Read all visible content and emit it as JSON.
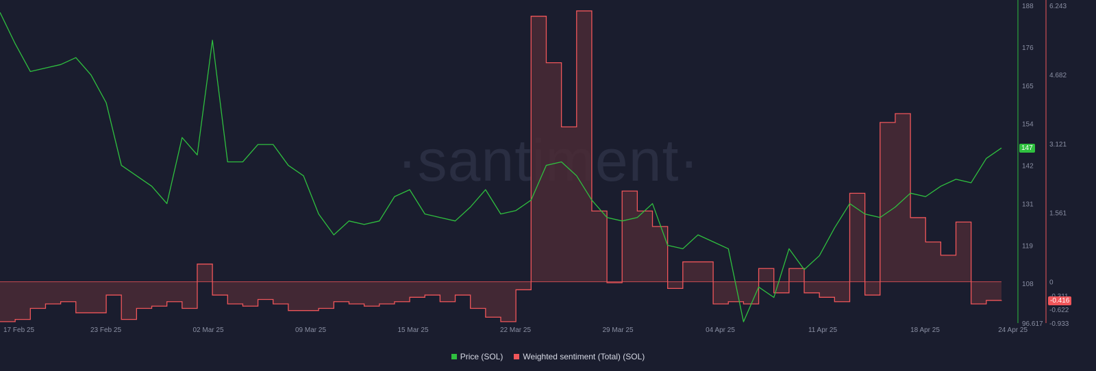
{
  "watermark": "·santiment·",
  "legend": {
    "price": "Price (SOL)",
    "sentiment": "Weighted sentiment (Total) (SOL)"
  },
  "colors": {
    "background": "#1a1d2e",
    "price": "#2fc03f",
    "sentiment": "#f0565a",
    "sentiment_fill": "#4a2a35",
    "axis_text": "#8a8fa3"
  },
  "badges": {
    "price_current": "147",
    "sentiment_current": "-0.416"
  },
  "chart_data": {
    "type": "line",
    "x_ticks": [
      "17 Feb 25",
      "23 Feb 25",
      "02 Mar 25",
      "09 Mar 25",
      "15 Mar 25",
      "22 Mar 25",
      "29 Mar 25",
      "04 Apr 25",
      "11 Apr 25",
      "18 Apr 25",
      "24 Apr 25"
    ],
    "x_range": [
      "2025-02-17",
      "2025-04-24"
    ],
    "grid": false,
    "legend_position": "bottom-center",
    "price_axis": {
      "side": "right",
      "ticks": [
        "188",
        "176",
        "165",
        "154",
        "142",
        "131",
        "119",
        "108",
        "96.617"
      ],
      "ylim": [
        96.617,
        188
      ]
    },
    "sentiment_axis": {
      "side": "right",
      "ticks": [
        "6.243",
        "4.682",
        "3.121",
        "1.561",
        "0",
        "-0.311",
        "-0.622",
        "-0.933"
      ],
      "ylim": [
        -0.933,
        6.243
      ]
    },
    "series": [
      {
        "name": "Price (SOL)",
        "axis": "price",
        "points": [
          [
            "2025-02-17",
            186
          ],
          [
            "2025-02-18",
            177
          ],
          [
            "2025-02-19",
            169
          ],
          [
            "2025-02-20",
            170
          ],
          [
            "2025-02-21",
            171
          ],
          [
            "2025-02-22",
            173
          ],
          [
            "2025-02-23",
            168
          ],
          [
            "2025-02-24",
            160
          ],
          [
            "2025-02-25",
            142
          ],
          [
            "2025-02-26",
            139
          ],
          [
            "2025-02-27",
            136
          ],
          [
            "2025-02-28",
            131
          ],
          [
            "2025-03-01",
            150
          ],
          [
            "2025-03-02",
            145
          ],
          [
            "2025-03-03",
            178
          ],
          [
            "2025-03-04",
            143
          ],
          [
            "2025-03-05",
            143
          ],
          [
            "2025-03-06",
            148
          ],
          [
            "2025-03-07",
            148
          ],
          [
            "2025-03-08",
            142
          ],
          [
            "2025-03-09",
            139
          ],
          [
            "2025-03-10",
            128
          ],
          [
            "2025-03-11",
            122
          ],
          [
            "2025-03-12",
            126
          ],
          [
            "2025-03-13",
            125
          ],
          [
            "2025-03-14",
            126
          ],
          [
            "2025-03-15",
            133
          ],
          [
            "2025-03-16",
            135
          ],
          [
            "2025-03-17",
            128
          ],
          [
            "2025-03-18",
            127
          ],
          [
            "2025-03-19",
            126
          ],
          [
            "2025-03-20",
            130
          ],
          [
            "2025-03-21",
            135
          ],
          [
            "2025-03-22",
            128
          ],
          [
            "2025-03-23",
            129
          ],
          [
            "2025-03-24",
            132
          ],
          [
            "2025-03-25",
            142
          ],
          [
            "2025-03-26",
            143
          ],
          [
            "2025-03-27",
            139
          ],
          [
            "2025-03-28",
            132
          ],
          [
            "2025-03-29",
            127
          ],
          [
            "2025-03-30",
            126
          ],
          [
            "2025-03-31",
            127
          ],
          [
            "2025-04-01",
            131
          ],
          [
            "2025-04-02",
            119
          ],
          [
            "2025-04-03",
            118
          ],
          [
            "2025-04-04",
            122
          ],
          [
            "2025-04-05",
            120
          ],
          [
            "2025-04-06",
            118
          ],
          [
            "2025-04-07",
            97
          ],
          [
            "2025-04-08",
            107
          ],
          [
            "2025-04-09",
            104
          ],
          [
            "2025-04-10",
            118
          ],
          [
            "2025-04-11",
            112
          ],
          [
            "2025-04-12",
            116
          ],
          [
            "2025-04-13",
            124
          ],
          [
            "2025-04-14",
            131
          ],
          [
            "2025-04-15",
            128
          ],
          [
            "2025-04-16",
            127
          ],
          [
            "2025-04-17",
            130
          ],
          [
            "2025-04-18",
            134
          ],
          [
            "2025-04-19",
            133
          ],
          [
            "2025-04-20",
            136
          ],
          [
            "2025-04-21",
            138
          ],
          [
            "2025-04-22",
            137
          ],
          [
            "2025-04-23",
            144
          ],
          [
            "2025-04-24",
            147
          ]
        ]
      },
      {
        "name": "Weighted sentiment (Total) (SOL)",
        "axis": "sentiment",
        "points": [
          [
            "2025-02-17",
            -0.9
          ],
          [
            "2025-02-18",
            -0.85
          ],
          [
            "2025-02-19",
            -0.6
          ],
          [
            "2025-02-20",
            -0.5
          ],
          [
            "2025-02-21",
            -0.45
          ],
          [
            "2025-02-22",
            -0.7
          ],
          [
            "2025-02-23",
            -0.7
          ],
          [
            "2025-02-24",
            -0.3
          ],
          [
            "2025-02-25",
            -0.85
          ],
          [
            "2025-02-26",
            -0.6
          ],
          [
            "2025-02-27",
            -0.55
          ],
          [
            "2025-02-28",
            -0.45
          ],
          [
            "2025-03-01",
            -0.6
          ],
          [
            "2025-03-02",
            0.4
          ],
          [
            "2025-03-03",
            -0.3
          ],
          [
            "2025-03-04",
            -0.5
          ],
          [
            "2025-03-05",
            -0.55
          ],
          [
            "2025-03-06",
            -0.4
          ],
          [
            "2025-03-07",
            -0.5
          ],
          [
            "2025-03-08",
            -0.65
          ],
          [
            "2025-03-09",
            -0.65
          ],
          [
            "2025-03-10",
            -0.6
          ],
          [
            "2025-03-11",
            -0.45
          ],
          [
            "2025-03-12",
            -0.5
          ],
          [
            "2025-03-13",
            -0.55
          ],
          [
            "2025-03-14",
            -0.5
          ],
          [
            "2025-03-15",
            -0.45
          ],
          [
            "2025-03-16",
            -0.35
          ],
          [
            "2025-03-17",
            -0.3
          ],
          [
            "2025-03-18",
            -0.45
          ],
          [
            "2025-03-19",
            -0.3
          ],
          [
            "2025-03-20",
            -0.6
          ],
          [
            "2025-03-21",
            -0.8
          ],
          [
            "2025-03-22",
            -0.9
          ],
          [
            "2025-03-23",
            -0.18
          ],
          [
            "2025-03-24",
            6.0
          ],
          [
            "2025-03-25",
            4.95
          ],
          [
            "2025-03-26",
            3.5
          ],
          [
            "2025-03-27",
            6.12
          ],
          [
            "2025-03-28",
            1.6
          ],
          [
            "2025-03-29",
            -0.02
          ],
          [
            "2025-03-30",
            2.05
          ],
          [
            "2025-03-31",
            1.6
          ],
          [
            "2025-04-01",
            1.25
          ],
          [
            "2025-04-02",
            -0.15
          ],
          [
            "2025-04-03",
            0.45
          ],
          [
            "2025-04-04",
            0.45
          ],
          [
            "2025-04-05",
            -0.5
          ],
          [
            "2025-04-06",
            -0.45
          ],
          [
            "2025-04-07",
            -0.5
          ],
          [
            "2025-04-08",
            0.3
          ],
          [
            "2025-04-09",
            -0.25
          ],
          [
            "2025-04-10",
            0.3
          ],
          [
            "2025-04-11",
            -0.25
          ],
          [
            "2025-04-12",
            -0.35
          ],
          [
            "2025-04-13",
            -0.45
          ],
          [
            "2025-04-14",
            2.0
          ],
          [
            "2025-04-15",
            -0.3
          ],
          [
            "2025-04-16",
            3.6
          ],
          [
            "2025-04-17",
            3.8
          ],
          [
            "2025-04-18",
            1.45
          ],
          [
            "2025-04-19",
            0.9
          ],
          [
            "2025-04-20",
            0.6
          ],
          [
            "2025-04-21",
            1.35
          ],
          [
            "2025-04-22",
            -0.5
          ],
          [
            "2025-04-23",
            -0.42
          ],
          [
            "2025-04-24",
            -0.416
          ]
        ]
      }
    ]
  }
}
